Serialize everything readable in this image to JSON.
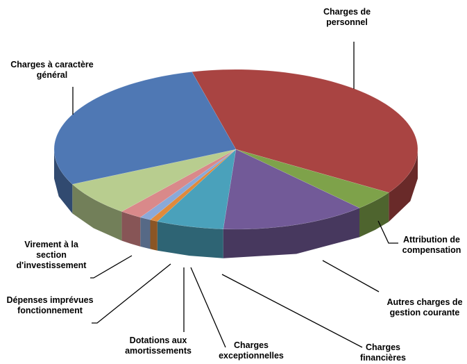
{
  "chart_data": {
    "type": "pie3d",
    "categories": [
      "Charges de personnel",
      "Attribution de compensation",
      "Autres charges de gestion courante",
      "Charges financières",
      "Charges exceptionnelles",
      "Dotations aux amortissements",
      "Dépenses imprévues fonctionnement",
      "Virement à la section d'investissement",
      "Charges à caractère général"
    ],
    "values": [
      38,
      4,
      13,
      6,
      0.7,
      1,
      2,
      7,
      28.3
    ],
    "colors": [
      "#a94442",
      "#7ea24a",
      "#725a98",
      "#4aa1bb",
      "#e08a3c",
      "#8aa9d8",
      "#d9898a",
      "#b8cd8f",
      "#4f78b4"
    ]
  }
}
